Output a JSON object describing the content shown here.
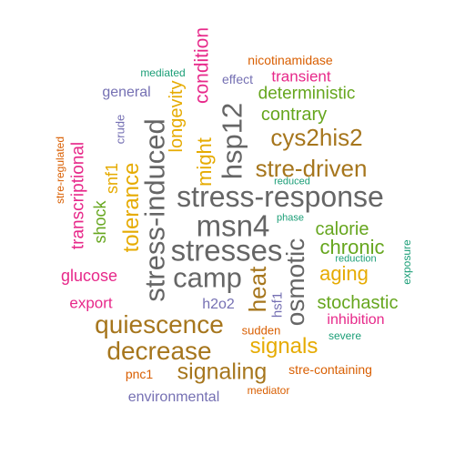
{
  "palette": {
    "gray": "#666666",
    "brown": "#A6761D",
    "gold": "#E6AB02",
    "green": "#66A61E",
    "pink": "#E7298A",
    "purple": "#7570B3",
    "orange": "#D95F02",
    "teal": "#1B9E77"
  },
  "words": {
    "stress_response": "stress-response",
    "msn4": "msn4",
    "stresses": "stresses",
    "camp": "camp",
    "stress_induced": "stress-induced",
    "hsp12": "hsp12",
    "osmotic": "osmotic",
    "heat": "heat",
    "quiescence": "quiescence",
    "decrease": "decrease",
    "signaling": "signaling",
    "cys2his2": "cys2his2",
    "stre_driven": "stre-driven",
    "tolerance": "tolerance",
    "longevity": "longevity",
    "might": "might",
    "condition": "condition",
    "signals": "signals",
    "chronic": "chronic",
    "calorie": "calorie",
    "aging": "aging",
    "stochastic": "stochastic",
    "contrary": "contrary",
    "deterministic": "deterministic",
    "transcriptional": "transcriptional",
    "shock": "shock",
    "snf1": "snf1",
    "glucose": "glucose",
    "export": "export",
    "environmental": "environmental",
    "transient": "transient",
    "general": "general",
    "inhibition": "inhibition",
    "h2o2": "h2o2",
    "hsf1": "hsf1",
    "pnc1": "pnc1",
    "stre_containing": "stre-containing",
    "effect": "effect",
    "nicotinamidase": "nicotinamidase",
    "stre_regulated": "stre-regulated",
    "crude": "crude",
    "mediated": "mediated",
    "reduced": "reduced",
    "phase": "phase",
    "reduction": "reduction",
    "exposure": "exposure",
    "sudden": "sudden",
    "severe": "severe",
    "mediator": "mediator"
  }
}
